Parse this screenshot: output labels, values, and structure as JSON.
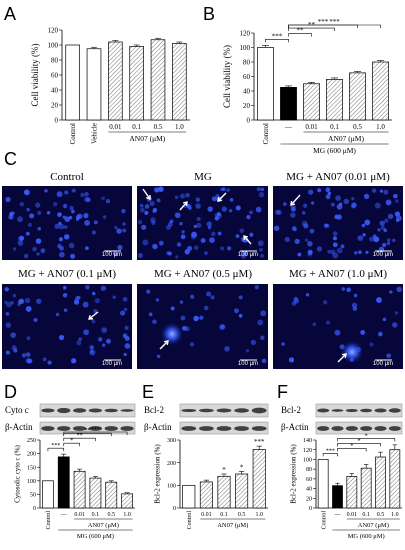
{
  "panel_letters": [
    "A",
    "B",
    "C",
    "D",
    "E",
    "F"
  ],
  "micrograph": {
    "labels": [
      "Control",
      "MG",
      "MG + AN07 (0.01 μM)",
      "MG + AN07 (0.1 μM)",
      "MG + AN07 (0.5 μM)",
      "MG + AN07 (1.0 μM)"
    ],
    "scale_bar": "100 μm",
    "colors": {
      "background": "#06063a",
      "nuclei": "#3a5cff",
      "scale": "#ffffff",
      "arrow": "#ffffff"
    }
  },
  "blots": {
    "D": {
      "rows": [
        "Cyto c",
        "β-Actin"
      ]
    },
    "E": {
      "rows": [
        "Bcl-2",
        "β-Actin"
      ]
    },
    "F": {
      "rows": [
        "Bcl-2",
        "β-Actin"
      ]
    }
  },
  "chart_data": [
    {
      "id": "A",
      "type": "bar",
      "ylabel": "Cell viability (%)",
      "ylim": [
        0,
        120
      ],
      "yticks": [
        0,
        20,
        40,
        60,
        80,
        100,
        120
      ],
      "categories": [
        "Control",
        "Vehicle",
        "0.01",
        "0.1",
        "0.5",
        "1.0"
      ],
      "values": [
        100,
        95,
        104,
        98,
        107,
        102
      ],
      "errors": [
        0,
        2,
        2,
        2,
        2,
        2
      ],
      "fills": [
        "white",
        "white",
        "hatch",
        "hatch",
        "hatch",
        "hatch"
      ],
      "rotated_count": 2,
      "group_label": "AN07 (μM)",
      "group_from": 2,
      "group_to": 5,
      "sub_label": "",
      "sub_from": 0,
      "sub_to": 0,
      "significance": []
    },
    {
      "id": "B",
      "type": "bar",
      "ylabel": "Cell viability (%)",
      "ylim": [
        0,
        120
      ],
      "yticks": [
        0,
        20,
        40,
        60,
        80,
        100,
        120
      ],
      "categories": [
        "Control",
        "—",
        "0.01",
        "0.1",
        "0.5",
        "1.0"
      ],
      "values": [
        100,
        45,
        50,
        56,
        65,
        80
      ],
      "errors": [
        3,
        2,
        2,
        2,
        2,
        2
      ],
      "fills": [
        "white",
        "black",
        "hatch",
        "hatch",
        "hatch",
        "hatch"
      ],
      "rotated_count": 1,
      "group_label": "AN07 (μM)",
      "group_from": 2,
      "group_to": 5,
      "sub_label": "MG (600 μM)",
      "sub_from": 1,
      "sub_to": 5,
      "significance": [
        {
          "from": 0,
          "to": 1,
          "label": "***"
        },
        {
          "from": 1,
          "to": 2,
          "label": "**"
        },
        {
          "from": 1,
          "to": 3,
          "label": "**"
        },
        {
          "from": 1,
          "to": 4,
          "label": "***"
        },
        {
          "from": 1,
          "to": 5,
          "label": "***"
        }
      ]
    },
    {
      "id": "D",
      "type": "bar",
      "ylabel": "Cytosolic cyto c (%)",
      "ylim": [
        0,
        250
      ],
      "yticks": [
        0,
        50,
        100,
        150,
        200,
        250
      ],
      "categories": [
        "Control",
        "—",
        "0.01",
        "0.1",
        "0.5",
        "1.0"
      ],
      "values": [
        100,
        188,
        135,
        110,
        95,
        52
      ],
      "errors": [
        0,
        10,
        8,
        6,
        5,
        4
      ],
      "fills": [
        "white",
        "black",
        "hatch",
        "hatch",
        "hatch",
        "hatch"
      ],
      "rotated_count": 1,
      "group_label": "AN07 (μM)",
      "group_from": 2,
      "group_to": 5,
      "sub_label": "MG (600 μM)",
      "sub_from": 1,
      "sub_to": 5,
      "significance": [
        {
          "from": 0,
          "to": 1,
          "label": "***"
        },
        {
          "from": 1,
          "to": 2,
          "label": "*"
        },
        {
          "from": 1,
          "to": 3,
          "label": "**"
        },
        {
          "from": 1,
          "to": 4,
          "label": "**"
        },
        {
          "from": 1,
          "to": 5,
          "label": "***"
        }
      ]
    },
    {
      "id": "E",
      "type": "bar",
      "ylabel": "Bcl-2 expression (%)",
      "ylim": [
        0,
        300
      ],
      "yticks": [
        0,
        100,
        200,
        300
      ],
      "categories": [
        "Control",
        "0.01",
        "0.1",
        "0.5",
        "1.0"
      ],
      "values": [
        100,
        115,
        140,
        150,
        258
      ],
      "errors": [
        0,
        8,
        10,
        12,
        15
      ],
      "fills": [
        "white",
        "hatch",
        "hatch",
        "hatch",
        "hatch"
      ],
      "rotated_count": 1,
      "group_label": "AN07 (μM)",
      "group_from": 1,
      "group_to": 4,
      "sub_label": "",
      "sub_from": 0,
      "sub_to": 0,
      "above": [
        "",
        "",
        "*",
        "*",
        "***"
      ],
      "significance": []
    },
    {
      "id": "F",
      "type": "bar",
      "ylabel": "Bcl-2 expression (%)",
      "ylim": [
        0,
        140
      ],
      "yticks": [
        0,
        20,
        40,
        60,
        80,
        100,
        120,
        140
      ],
      "categories": [
        "Control",
        "—",
        "0.01",
        "0.1",
        "0.5",
        "1.0"
      ],
      "values": [
        100,
        46,
        65,
        82,
        105,
        120
      ],
      "errors": [
        0,
        5,
        6,
        8,
        10,
        10
      ],
      "fills": [
        "white",
        "black",
        "hatch",
        "hatch",
        "hatch",
        "hatch"
      ],
      "rotated_count": 1,
      "group_label": "AN07 (μM)",
      "group_from": 2,
      "group_to": 5,
      "sub_label": "MG (600 μM)",
      "sub_from": 1,
      "sub_to": 5,
      "significance": [
        {
          "from": 0,
          "to": 1,
          "label": "***"
        },
        {
          "from": 1,
          "to": 3,
          "label": "*"
        },
        {
          "from": 1,
          "to": 4,
          "label": "*"
        },
        {
          "from": 1,
          "to": 5,
          "label": "*"
        }
      ]
    }
  ]
}
